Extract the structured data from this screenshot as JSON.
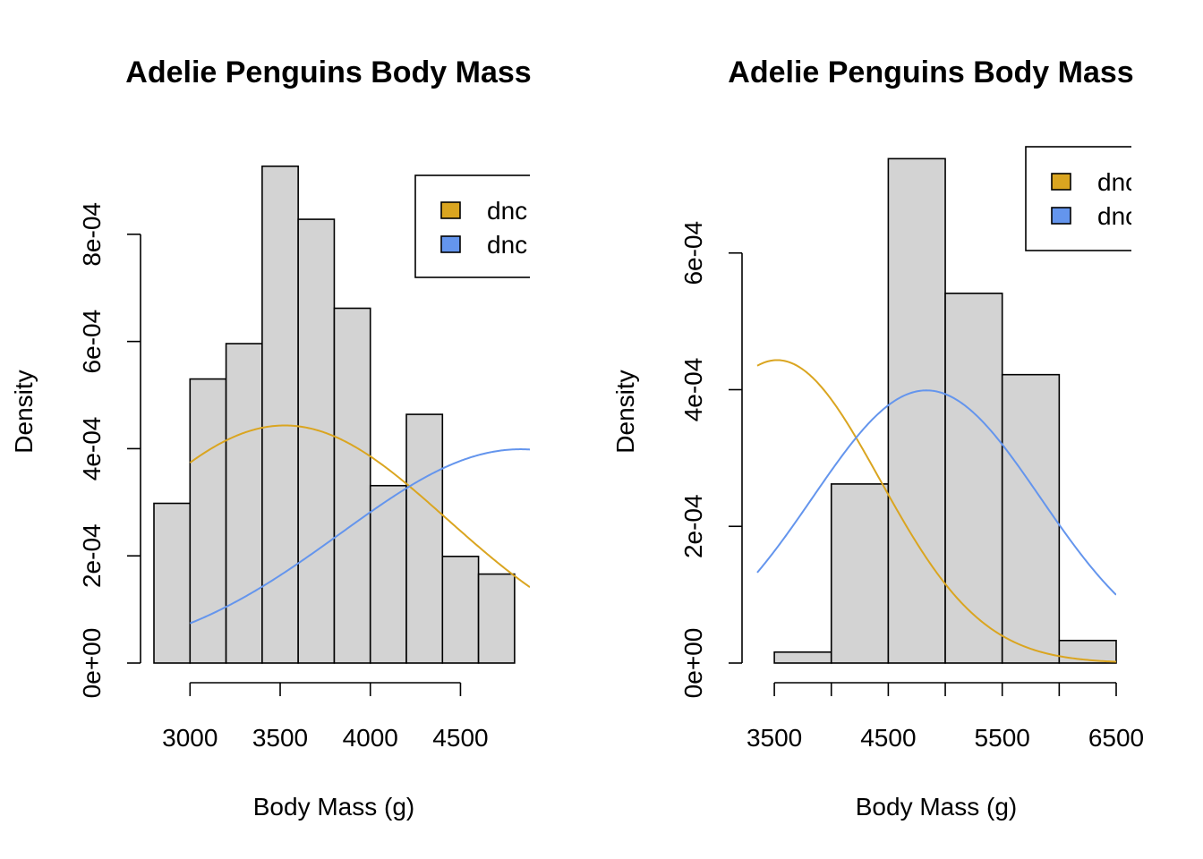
{
  "colors": {
    "bar_fill": "#d3d3d3",
    "bar_stroke": "#000000",
    "curve1": "#daa520",
    "curve2": "#6495ed"
  },
  "chart_data": [
    {
      "type": "bar",
      "subtype": "histogram-density",
      "title": "Adelie Penguins Body Mass",
      "xlabel": "Body Mass (g)",
      "ylabel": "Density",
      "xlim": [
        2800,
        4885
      ],
      "ylim": [
        0,
        0.00095
      ],
      "x_ticks": [
        3000,
        3500,
        4000,
        4500
      ],
      "x_tick_labels": [
        "3000",
        "3500",
        "4000",
        "4500"
      ],
      "y_ticks": [
        0,
        0.0002,
        0.0004,
        0.0006,
        0.0008
      ],
      "y_tick_labels": [
        "0e+00",
        "2e-04",
        "4e-04",
        "6e-04",
        "8e-04"
      ],
      "bins": [
        {
          "x0": 2800,
          "x1": 3000,
          "density": 0.000298
        },
        {
          "x0": 3000,
          "x1": 3200,
          "density": 0.00053
        },
        {
          "x0": 3200,
          "x1": 3400,
          "density": 0.000596
        },
        {
          "x0": 3400,
          "x1": 3600,
          "density": 0.000927
        },
        {
          "x0": 3600,
          "x1": 3800,
          "density": 0.000828
        },
        {
          "x0": 3800,
          "x1": 4000,
          "density": 0.000662
        },
        {
          "x0": 4000,
          "x1": 4200,
          "density": 0.000331
        },
        {
          "x0": 4200,
          "x1": 4400,
          "density": 0.000464
        },
        {
          "x0": 4400,
          "x1": 4600,
          "density": 0.000199
        },
        {
          "x0": 4600,
          "x1": 4800,
          "density": 0.000166
        }
      ],
      "curves": [
        {
          "color_key": "curve1",
          "mean": 3525,
          "sd": 900,
          "x_from": 3000,
          "x_to": 4885
        },
        {
          "color_key": "curve2",
          "mean": 4835,
          "sd": 1000,
          "x_from": 3000,
          "x_to": 4885
        }
      ],
      "legend": {
        "placement": "top-right",
        "entries": [
          {
            "label": "dnc",
            "color_key": "curve1"
          },
          {
            "label": "dnc",
            "color_key": "curve2"
          }
        ]
      },
      "grid": false
    },
    {
      "type": "bar",
      "subtype": "histogram-density",
      "title": "Adelie Penguins Body Mass",
      "xlabel": "Body Mass (g)",
      "ylabel": "Density",
      "xlim": [
        3350,
        6500
      ],
      "ylim": [
        0,
        0.000745
      ],
      "x_ticks": [
        3500,
        4000,
        4500,
        5000,
        5500,
        6000,
        6500
      ],
      "x_tick_labels": [
        "3500",
        "",
        "4500",
        "",
        "5500",
        "",
        "6500"
      ],
      "y_ticks": [
        0,
        0.0002,
        0.0004,
        0.0006
      ],
      "y_tick_labels": [
        "0e+00",
        "2e-04",
        "4e-04",
        "6e-04"
      ],
      "bins": [
        {
          "x0": 3500,
          "x1": 4000,
          "density": 1.6e-05
        },
        {
          "x0": 4000,
          "x1": 4500,
          "density": 0.000262
        },
        {
          "x0": 4500,
          "x1": 5000,
          "density": 0.000738
        },
        {
          "x0": 5000,
          "x1": 5500,
          "density": 0.000541
        },
        {
          "x0": 5500,
          "x1": 6000,
          "density": 0.000422
        },
        {
          "x0": 6000,
          "x1": 6500,
          "density": 3.3e-05
        }
      ],
      "curves": [
        {
          "color_key": "curve1",
          "mean": 3525,
          "sd": 900,
          "x_from": 3350,
          "x_to": 6500
        },
        {
          "color_key": "curve2",
          "mean": 4835,
          "sd": 1000,
          "x_from": 3350,
          "x_to": 6500
        }
      ],
      "legend": {
        "placement": "top-right",
        "entries": [
          {
            "label": "dnc",
            "color_key": "curve1"
          },
          {
            "label": "dnc",
            "color_key": "curve2"
          }
        ]
      },
      "grid": false
    }
  ]
}
